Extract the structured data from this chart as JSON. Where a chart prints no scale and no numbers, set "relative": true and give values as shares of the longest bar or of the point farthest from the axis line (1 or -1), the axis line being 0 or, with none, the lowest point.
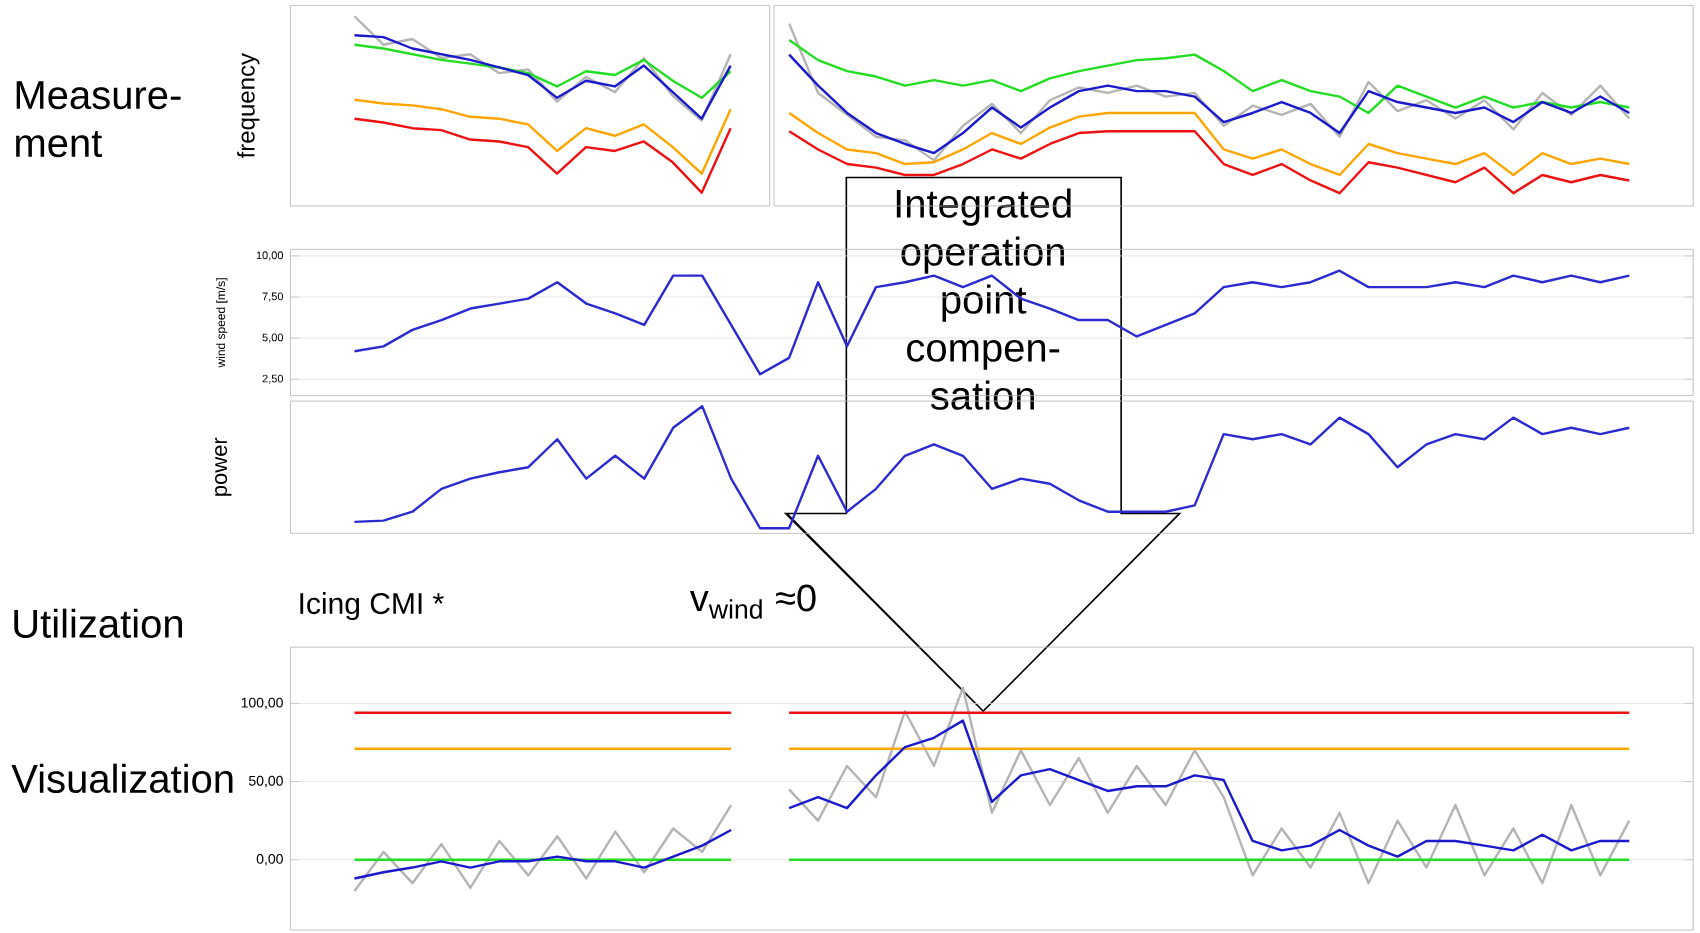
{
  "chart_data": [
    {
      "type": "line",
      "relative": true,
      "ylabel": "frequency",
      "annotations": [
        "Measure-ment"
      ],
      "categories": [
        null,
        null,
        null,
        null,
        null,
        null,
        null,
        null,
        null,
        null,
        null,
        null,
        null,
        null
      ],
      "series": [
        {
          "color": "#b4b4b4",
          "values": [
            1,
            0.85,
            0.88,
            0.78,
            0.8,
            0.7,
            0.72,
            0.55,
            0.68,
            0.6,
            0.78,
            0.58,
            0.45,
            0.8
          ]
        },
        {
          "color": "#22dd22",
          "values": [
            0.85,
            0.83,
            0.8,
            0.77,
            0.75,
            0.73,
            0.7,
            0.63,
            0.71,
            0.69,
            0.77,
            0.66,
            0.57,
            0.71
          ]
        },
        {
          "color": "#ffa500",
          "values": [
            0.56,
            0.54,
            0.53,
            0.51,
            0.47,
            0.46,
            0.43,
            0.29,
            0.41,
            0.37,
            0.43,
            0.31,
            0.17,
            0.51
          ]
        },
        {
          "color": "#ee1111",
          "values": [
            0.46,
            0.44,
            0.41,
            0.4,
            0.35,
            0.34,
            0.31,
            0.17,
            0.31,
            0.29,
            0.34,
            0.23,
            0.07,
            0.41
          ]
        },
        {
          "color": "#1a1acc",
          "values": [
            0.9,
            0.89,
            0.83,
            0.8,
            0.77,
            0.73,
            0.69,
            0.57,
            0.66,
            0.63,
            0.74,
            0.6,
            0.46,
            0.74
          ]
        }
      ]
    },
    {
      "type": "line",
      "relative": true,
      "categories": [
        null,
        null,
        null,
        null,
        null,
        null,
        null,
        null,
        null,
        null,
        null,
        null,
        null,
        null,
        null,
        null,
        null,
        null,
        null,
        null,
        null,
        null,
        null,
        null,
        null,
        null,
        null,
        null,
        null,
        null
      ],
      "series": [
        {
          "color": "#b4b4b4",
          "values": [
            1,
            0.62,
            0.5,
            0.38,
            0.36,
            0.25,
            0.44,
            0.56,
            0.4,
            0.58,
            0.65,
            0.62,
            0.66,
            0.6,
            0.62,
            0.44,
            0.55,
            0.5,
            0.56,
            0.38,
            0.68,
            0.52,
            0.58,
            0.48,
            0.58,
            0.42,
            0.62,
            0.5,
            0.66,
            0.48
          ]
        },
        {
          "color": "#22dd22",
          "values": [
            0.91,
            0.8,
            0.74,
            0.71,
            0.66,
            0.69,
            0.66,
            0.69,
            0.63,
            0.7,
            0.74,
            0.77,
            0.8,
            0.81,
            0.83,
            0.74,
            0.63,
            0.69,
            0.63,
            0.6,
            0.51,
            0.66,
            0.6,
            0.54,
            0.6,
            0.54,
            0.57,
            0.54,
            0.57,
            0.54
          ]
        },
        {
          "color": "#ffa500",
          "values": [
            0.51,
            0.4,
            0.31,
            0.29,
            0.23,
            0.24,
            0.31,
            0.4,
            0.34,
            0.43,
            0.49,
            0.51,
            0.51,
            0.51,
            0.51,
            0.31,
            0.26,
            0.31,
            0.23,
            0.17,
            0.34,
            0.29,
            0.26,
            0.23,
            0.29,
            0.17,
            0.29,
            0.23,
            0.26,
            0.23
          ]
        },
        {
          "color": "#ee1111",
          "values": [
            0.41,
            0.31,
            0.23,
            0.21,
            0.17,
            0.17,
            0.23,
            0.31,
            0.26,
            0.34,
            0.4,
            0.41,
            0.41,
            0.41,
            0.41,
            0.23,
            0.17,
            0.23,
            0.14,
            0.07,
            0.24,
            0.21,
            0.17,
            0.13,
            0.21,
            0.07,
            0.17,
            0.13,
            0.17,
            0.14
          ]
        },
        {
          "color": "#1a1acc",
          "values": [
            0.83,
            0.66,
            0.51,
            0.4,
            0.34,
            0.29,
            0.4,
            0.54,
            0.43,
            0.54,
            0.63,
            0.66,
            0.63,
            0.63,
            0.6,
            0.46,
            0.51,
            0.57,
            0.51,
            0.4,
            0.63,
            0.57,
            0.54,
            0.51,
            0.54,
            0.46,
            0.57,
            0.51,
            0.6,
            0.51
          ]
        }
      ]
    },
    {
      "type": "line",
      "ylabel": "wind speed [m/s]",
      "grid": "y",
      "ylim": [
        1.5,
        10.4
      ],
      "yticks": [
        {
          "value": 2.5,
          "label": "2,50"
        },
        {
          "value": 5,
          "label": "5,00"
        },
        {
          "value": 7.5,
          "label": "7,50"
        },
        {
          "value": 10,
          "label": "10,00"
        }
      ],
      "categories": [
        null,
        null,
        null,
        null,
        null,
        null,
        null,
        null,
        null,
        null,
        null,
        null,
        null,
        null,
        null,
        null,
        null,
        null,
        null,
        null,
        null,
        null,
        null,
        null,
        null,
        null,
        null,
        null,
        null,
        null,
        null,
        null,
        null,
        null,
        null,
        null,
        null,
        null,
        null,
        null,
        null,
        null,
        null,
        null,
        null
      ],
      "series": [
        {
          "color": "#2a2ad0",
          "values": [
            4.2,
            4.5,
            5.5,
            6.1,
            6.8,
            7.1,
            7.4,
            8.4,
            7.1,
            6.5,
            5.8,
            8.8,
            8.8,
            5.8,
            2.8,
            3.8,
            8.4,
            4.5,
            8.1,
            8.4,
            8.8,
            8.1,
            8.8,
            7.4,
            6.8,
            6.1,
            6.1,
            5.1,
            5.8,
            6.5,
            8.1,
            8.4,
            8.1,
            8.4,
            9.1,
            8.1,
            8.1,
            8.1,
            8.4,
            8.1,
            8.8,
            8.4,
            8.8,
            8.4,
            8.8
          ]
        }
      ]
    },
    {
      "type": "line",
      "relative": true,
      "ylabel": "power",
      "categories": [
        null,
        null,
        null,
        null,
        null,
        null,
        null,
        null,
        null,
        null,
        null,
        null,
        null,
        null,
        null,
        null,
        null,
        null,
        null,
        null,
        null,
        null,
        null,
        null,
        null,
        null,
        null,
        null,
        null,
        null,
        null,
        null,
        null,
        null,
        null,
        null,
        null,
        null,
        null,
        null,
        null,
        null,
        null,
        null,
        null
      ],
      "series": [
        {
          "color": "#2a2ad0",
          "values": [
            0.09,
            0.1,
            0.17,
            0.35,
            0.43,
            0.48,
            0.52,
            0.74,
            0.43,
            0.61,
            0.43,
            0.83,
            1,
            0.43,
            0.04,
            0.04,
            0.61,
            0.17,
            0.35,
            0.61,
            0.7,
            0.61,
            0.35,
            0.43,
            0.39,
            0.26,
            0.17,
            0.17,
            0.17,
            0.22,
            0.78,
            0.74,
            0.78,
            0.7,
            0.91,
            0.78,
            0.52,
            0.7,
            0.78,
            0.74,
            0.91,
            0.78,
            0.83,
            0.78,
            0.83
          ]
        }
      ]
    },
    {
      "type": "line",
      "title": "Icing CMI *",
      "grid": "y",
      "ylim": [
        -45,
        136
      ],
      "yticks": [
        {
          "value": 0,
          "label": "0,00"
        },
        {
          "value": 50,
          "label": "50,00"
        },
        {
          "value": 100,
          "label": "100,00"
        }
      ],
      "annotations": [
        "Utilization",
        "Visualization",
        "v$_{wind}$ ≈0",
        "Integrated operation point compen-sation"
      ],
      "categories": [
        null,
        null,
        null,
        null,
        null,
        null,
        null,
        null,
        null,
        null,
        null,
        null,
        null,
        null,
        null,
        null,
        null,
        null,
        null,
        null,
        null,
        null,
        null,
        null,
        null,
        null,
        null,
        null,
        null,
        null,
        null,
        null,
        null,
        null,
        null,
        null,
        null,
        null,
        null,
        null,
        null,
        null,
        null,
        null,
        null
      ],
      "series": [
        {
          "color": "#b4b4b4",
          "values": [
            -20,
            5,
            -15,
            10,
            -18,
            12,
            -10,
            15,
            -12,
            18,
            -8,
            20,
            5,
            35,
            null,
            45,
            25,
            60,
            40,
            95,
            60,
            110,
            30,
            70,
            35,
            65,
            30,
            60,
            35,
            70,
            40,
            -10,
            20,
            -5,
            30,
            -15,
            25,
            -5,
            35,
            -10,
            20,
            -15,
            35,
            -10,
            25
          ]
        },
        {
          "color": "#ee1111",
          "values": [
            94,
            94,
            94,
            94,
            94,
            94,
            94,
            94,
            94,
            94,
            94,
            94,
            94,
            94,
            null,
            94,
            94,
            94,
            94,
            94,
            94,
            94,
            94,
            94,
            94,
            94,
            94,
            94,
            94,
            94,
            94,
            94,
            94,
            94,
            94,
            94,
            94,
            94,
            94,
            94,
            94,
            94,
            94,
            94,
            94
          ]
        },
        {
          "color": "#ffa500",
          "values": [
            71,
            71,
            71,
            71,
            71,
            71,
            71,
            71,
            71,
            71,
            71,
            71,
            71,
            71,
            null,
            71,
            71,
            71,
            71,
            71,
            71,
            71,
            71,
            71,
            71,
            71,
            71,
            71,
            71,
            71,
            71,
            71,
            71,
            71,
            71,
            71,
            71,
            71,
            71,
            71,
            71,
            71,
            71,
            71,
            71
          ]
        },
        {
          "color": "#22dd22",
          "values": [
            0,
            0,
            0,
            0,
            0,
            0,
            0,
            0,
            0,
            0,
            0,
            0,
            0,
            0,
            null,
            0,
            0,
            0,
            0,
            0,
            0,
            0,
            0,
            0,
            0,
            0,
            0,
            0,
            0,
            0,
            0,
            0,
            0,
            0,
            0,
            0,
            0,
            0,
            0,
            0,
            0,
            0,
            0,
            0,
            0
          ]
        },
        {
          "color": "#1a1acc",
          "values": [
            -12,
            -8,
            -5,
            -1,
            -5,
            -1,
            -1,
            2,
            -1,
            -1,
            -5,
            2,
            9,
            19,
            null,
            33,
            40,
            33,
            54,
            72,
            78,
            89,
            37,
            54,
            58,
            51,
            44,
            47,
            47,
            54,
            51,
            12,
            6,
            9,
            19,
            9,
            2,
            12,
            12,
            9,
            6,
            16,
            6,
            12,
            12
          ]
        }
      ]
    }
  ]
}
